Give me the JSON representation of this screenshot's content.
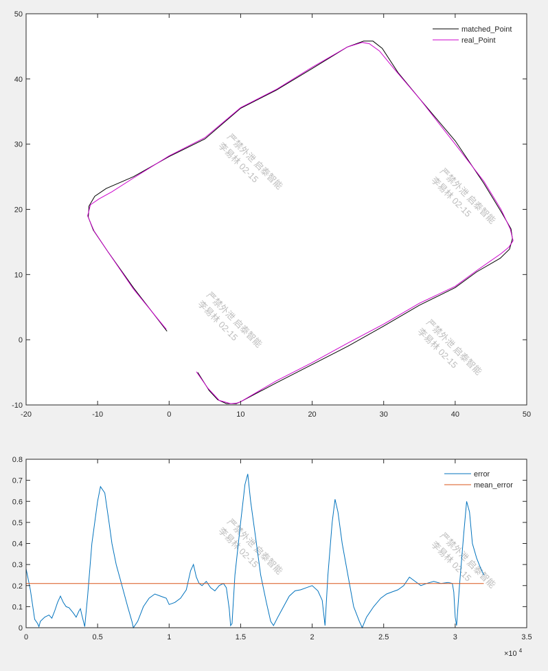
{
  "watermark": {
    "lines": [
      "严禁外泄 启泰智能",
      "李易林 02-15"
    ]
  },
  "chart_data": [
    {
      "type": "line",
      "xlim": [
        -20,
        50
      ],
      "ylim": [
        -10,
        50
      ],
      "xticks": [
        "-20",
        "-10",
        "0",
        "10",
        "20",
        "30",
        "40",
        "50"
      ],
      "yticks": [
        "-10",
        "0",
        "10",
        "20",
        "30",
        "40",
        "50"
      ],
      "grid": false,
      "legend_position": "top-right",
      "series": [
        {
          "name": "matched_Point",
          "color": "#000000",
          "points": [
            [
              -0.3,
              1.3
            ],
            [
              -5,
              8
            ],
            [
              -8.5,
              13.4
            ],
            [
              -10.6,
              16.8
            ],
            [
              -11.3,
              18.8
            ],
            [
              -11.2,
              20.5
            ],
            [
              -10.4,
              22
            ],
            [
              -8.8,
              23.2
            ],
            [
              -5,
              25
            ],
            [
              0,
              28.1
            ],
            [
              5,
              30.8
            ],
            [
              10,
              35.5
            ],
            [
              15,
              38.3
            ],
            [
              20,
              41.6
            ],
            [
              24.9,
              44.9
            ],
            [
              27.2,
              45.8
            ],
            [
              28.5,
              45.8
            ],
            [
              29.8,
              44.7
            ],
            [
              32,
              41
            ],
            [
              35,
              37
            ],
            [
              40,
              30.5
            ],
            [
              44,
              24
            ],
            [
              46.5,
              19.5
            ],
            [
              47.8,
              17
            ],
            [
              48,
              15.5
            ],
            [
              47.6,
              13.9
            ],
            [
              46.3,
              12.5
            ],
            [
              43,
              10.4
            ],
            [
              40,
              8
            ],
            [
              35,
              5.3
            ],
            [
              30,
              2.1
            ],
            [
              25,
              -1
            ],
            [
              20,
              -3.8
            ],
            [
              15,
              -6.6
            ],
            [
              10,
              -9.5
            ],
            [
              9.4,
              -9.8
            ],
            [
              8,
              -9.8
            ],
            [
              6.8,
              -9.2
            ],
            [
              5.6,
              -7.8
            ],
            [
              4,
              -5
            ]
          ]
        },
        {
          "name": "real_Point",
          "color": "#cc00cc",
          "points": [
            [
              -0.4,
              1.6
            ],
            [
              -5,
              7.8
            ],
            [
              -8.5,
              13.4
            ],
            [
              -10.5,
              16.7
            ],
            [
              -11.4,
              19
            ],
            [
              -11,
              20.7
            ],
            [
              -9.8,
              21.6
            ],
            [
              -8,
              22.7
            ],
            [
              -5,
              24.8
            ],
            [
              0,
              28.2
            ],
            [
              5,
              31
            ],
            [
              10,
              35.6
            ],
            [
              15,
              38.4
            ],
            [
              20,
              41.8
            ],
            [
              24.9,
              44.9
            ],
            [
              27,
              45.6
            ],
            [
              28,
              45.4
            ],
            [
              29.4,
              44.3
            ],
            [
              31.5,
              41.5
            ],
            [
              35,
              37
            ],
            [
              40,
              30
            ],
            [
              44,
              24.3
            ],
            [
              46.4,
              20
            ],
            [
              47.7,
              17
            ],
            [
              48.1,
              15.2
            ],
            [
              47.5,
              14.2
            ],
            [
              46.4,
              13.2
            ],
            [
              43,
              10.6
            ],
            [
              40,
              8.2
            ],
            [
              35,
              5.6
            ],
            [
              30,
              2.4
            ],
            [
              25,
              -0.5
            ],
            [
              20,
              -3.5
            ],
            [
              15,
              -6.3
            ],
            [
              10,
              -9.5
            ],
            [
              9.5,
              -9.7
            ],
            [
              8.6,
              -9.8
            ],
            [
              7,
              -9.3
            ],
            [
              5.4,
              -7.4
            ],
            [
              3.8,
              -4.9
            ]
          ]
        }
      ]
    },
    {
      "type": "line",
      "xlim": [
        0,
        35000
      ],
      "ylim": [
        0,
        0.8
      ],
      "xticks": [
        "0",
        "0.5",
        "1",
        "1.5",
        "2",
        "2.5",
        "3",
        "3.5"
      ],
      "yticks": [
        "0",
        "0.1",
        "0.2",
        "0.3",
        "0.4",
        "0.5",
        "0.6",
        "0.7",
        "0.8"
      ],
      "x_exponent_label": "×10",
      "x_exponent_power": "4",
      "grid": false,
      "legend_position": "top-right",
      "series": [
        {
          "name": "error",
          "color": "#0072bd",
          "points": [
            [
              0,
              0.28
            ],
            [
              300,
              0.18
            ],
            [
              600,
              0.04
            ],
            [
              800,
              0.02
            ],
            [
              900,
              0.005
            ],
            [
              1000,
              0.03
            ],
            [
              1300,
              0.05
            ],
            [
              1600,
              0.06
            ],
            [
              1800,
              0.045
            ],
            [
              2000,
              0.08
            ],
            [
              2200,
              0.12
            ],
            [
              2400,
              0.15
            ],
            [
              2600,
              0.12
            ],
            [
              2800,
              0.1
            ],
            [
              3000,
              0.095
            ],
            [
              3300,
              0.07
            ],
            [
              3500,
              0.05
            ],
            [
              3700,
              0.08
            ],
            [
              3800,
              0.09
            ],
            [
              3900,
              0.06
            ],
            [
              4100,
              0.005
            ],
            [
              4300,
              0.15
            ],
            [
              4600,
              0.4
            ],
            [
              5000,
              0.6
            ],
            [
              5200,
              0.67
            ],
            [
              5500,
              0.64
            ],
            [
              5800,
              0.5
            ],
            [
              6000,
              0.4
            ],
            [
              6300,
              0.3
            ],
            [
              6700,
              0.2
            ],
            [
              7100,
              0.1
            ],
            [
              7400,
              0.03
            ],
            [
              7500,
              0
            ],
            [
              7800,
              0.03
            ],
            [
              8200,
              0.1
            ],
            [
              8600,
              0.14
            ],
            [
              9000,
              0.16
            ],
            [
              9400,
              0.15
            ],
            [
              9800,
              0.14
            ],
            [
              10000,
              0.11
            ],
            [
              10400,
              0.12
            ],
            [
              10800,
              0.14
            ],
            [
              11200,
              0.18
            ],
            [
              11500,
              0.27
            ],
            [
              11700,
              0.3
            ],
            [
              11900,
              0.24
            ],
            [
              12100,
              0.21
            ],
            [
              12300,
              0.2
            ],
            [
              12600,
              0.22
            ],
            [
              12900,
              0.19
            ],
            [
              13200,
              0.175
            ],
            [
              13500,
              0.2
            ],
            [
              13800,
              0.21
            ],
            [
              14000,
              0.19
            ],
            [
              14200,
              0.09
            ],
            [
              14300,
              0.01
            ],
            [
              14400,
              0.02
            ],
            [
              14600,
              0.25
            ],
            [
              15000,
              0.5
            ],
            [
              15300,
              0.68
            ],
            [
              15500,
              0.73
            ],
            [
              15700,
              0.6
            ],
            [
              16000,
              0.45
            ],
            [
              16400,
              0.25
            ],
            [
              16800,
              0.12
            ],
            [
              17100,
              0.03
            ],
            [
              17300,
              0.01
            ],
            [
              17600,
              0.05
            ],
            [
              18000,
              0.1
            ],
            [
              18400,
              0.15
            ],
            [
              18800,
              0.175
            ],
            [
              19200,
              0.18
            ],
            [
              19600,
              0.19
            ],
            [
              20000,
              0.2
            ],
            [
              20400,
              0.175
            ],
            [
              20700,
              0.13
            ],
            [
              20900,
              0.01
            ],
            [
              21100,
              0.25
            ],
            [
              21400,
              0.5
            ],
            [
              21600,
              0.61
            ],
            [
              21800,
              0.55
            ],
            [
              22100,
              0.4
            ],
            [
              22500,
              0.25
            ],
            [
              22900,
              0.1
            ],
            [
              23300,
              0.03
            ],
            [
              23500,
              0
            ],
            [
              23800,
              0.05
            ],
            [
              24300,
              0.1
            ],
            [
              24800,
              0.14
            ],
            [
              25200,
              0.16
            ],
            [
              25600,
              0.17
            ],
            [
              26000,
              0.18
            ],
            [
              26400,
              0.2
            ],
            [
              26800,
              0.24
            ],
            [
              27200,
              0.22
            ],
            [
              27600,
              0.2
            ],
            [
              28000,
              0.21
            ],
            [
              28500,
              0.22
            ],
            [
              29000,
              0.21
            ],
            [
              29500,
              0.215
            ],
            [
              29800,
              0.21
            ],
            [
              29900,
              0.17
            ],
            [
              30000,
              0.05
            ],
            [
              30100,
              0.01
            ],
            [
              30300,
              0.2
            ],
            [
              30600,
              0.45
            ],
            [
              30800,
              0.6
            ],
            [
              31000,
              0.55
            ],
            [
              31200,
              0.4
            ],
            [
              31500,
              0.33
            ],
            [
              31800,
              0.28
            ],
            [
              32000,
              0.25
            ]
          ]
        },
        {
          "name": "mean_error",
          "color": "#d95319",
          "points": [
            [
              0,
              0.21
            ],
            [
              32000,
              0.21
            ]
          ]
        }
      ]
    }
  ]
}
